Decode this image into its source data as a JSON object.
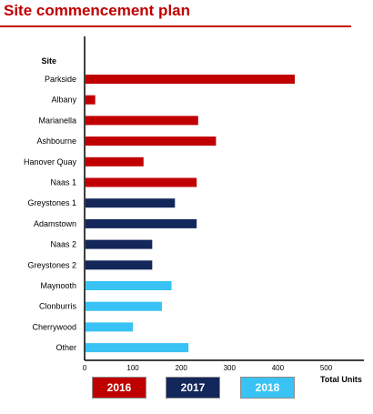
{
  "page": {
    "title": "Site commencement plan"
  },
  "colors": {
    "2016": "#c00000",
    "2017": "#14275a",
    "2018": "#38c3f4",
    "title": "#c00000"
  },
  "chart_data": {
    "type": "bar",
    "orientation": "horizontal",
    "title": "Site commencement plan",
    "ylabel": "Site",
    "xlabel": "Total Units",
    "xlim": [
      0,
      550
    ],
    "xticks": [
      0,
      100,
      200,
      300,
      400,
      500
    ],
    "grid": false,
    "legend_placement": "bottom",
    "categories": [
      "Parkside",
      "Albany",
      "Marianella",
      "Ashbourne",
      "Hanover Quay",
      "Naas 1",
      "Greystones 1",
      "Adamstown",
      "Naas 2",
      "Greystones 2",
      "Maynooth",
      "Clonburris",
      "Cherrywood",
      "Other"
    ],
    "values": [
      435,
      22,
      235,
      272,
      122,
      232,
      187,
      232,
      140,
      140,
      180,
      160,
      100,
      215
    ],
    "year": [
      "2016",
      "2016",
      "2016",
      "2016",
      "2016",
      "2016",
      "2017",
      "2017",
      "2017",
      "2017",
      "2018",
      "2018",
      "2018",
      "2018"
    ],
    "legend": [
      {
        "label": "2016",
        "color": "#c00000"
      },
      {
        "label": "2017",
        "color": "#14275a"
      },
      {
        "label": "2018",
        "color": "#38c3f4"
      }
    ]
  }
}
